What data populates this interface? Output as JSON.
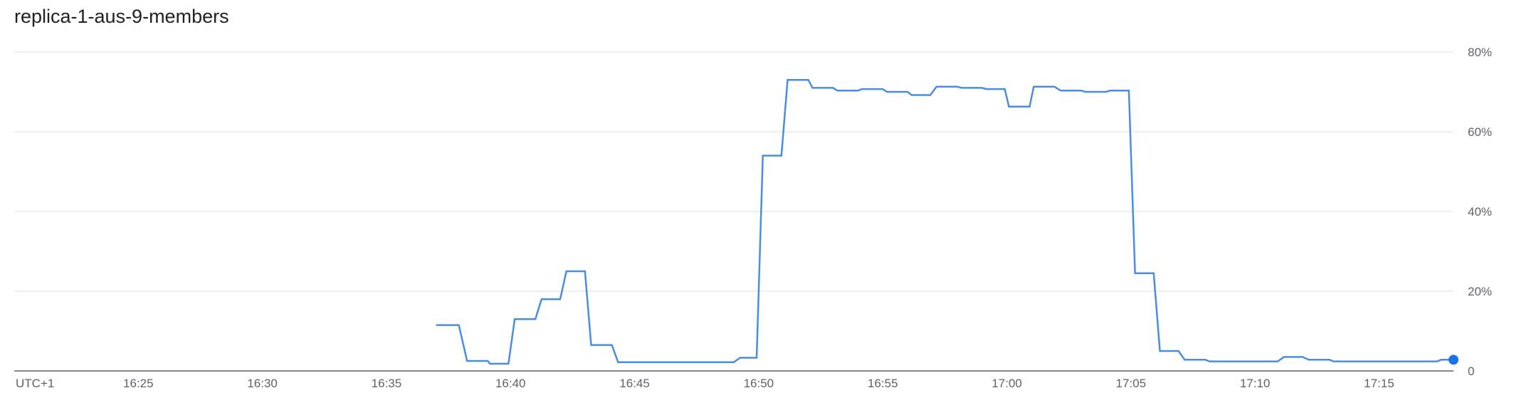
{
  "chart_data": {
    "type": "line",
    "title": "replica-1-aus-9-members",
    "timezone_label": "UTC+1",
    "x_tick_labels": [
      "16:25",
      "16:30",
      "16:35",
      "16:40",
      "16:45",
      "16:50",
      "16:55",
      "17:00",
      "17:05",
      "17:10",
      "17:15"
    ],
    "y_tick_labels": [
      "0",
      "20%",
      "40%",
      "60%",
      "80%"
    ],
    "xlim": [
      "16:20",
      "17:18"
    ],
    "ylim": [
      0,
      80
    ],
    "y_unit": "%",
    "grid": true,
    "legend": "none",
    "colors": {
      "line": "#4a8de0",
      "last_point": "#1a73e8",
      "grid": "#e8eaed",
      "axis": "#5f6368"
    },
    "series": [
      {
        "values": [
          [
            "16:37:00",
            11.5
          ],
          [
            "16:37:55",
            11.5
          ],
          [
            "16:38:15",
            2.5
          ],
          [
            "16:39:05",
            2.5
          ],
          [
            "16:39:10",
            1.8
          ],
          [
            "16:39:55",
            1.8
          ],
          [
            "16:40:10",
            13
          ],
          [
            "16:41:00",
            13
          ],
          [
            "16:41:15",
            18
          ],
          [
            "16:42:00",
            18
          ],
          [
            "16:42:15",
            25
          ],
          [
            "16:43:00",
            25
          ],
          [
            "16:43:15",
            6.5
          ],
          [
            "16:44:05",
            6.5
          ],
          [
            "16:44:20",
            2.2
          ],
          [
            "16:49:00",
            2.2
          ],
          [
            "16:49:15",
            3.3
          ],
          [
            "16:49:55",
            3.3
          ],
          [
            "16:50:10",
            54
          ],
          [
            "16:50:55",
            54
          ],
          [
            "16:51:10",
            73
          ],
          [
            "16:52:00",
            73
          ],
          [
            "16:52:10",
            71
          ],
          [
            "16:53:00",
            71
          ],
          [
            "16:53:10",
            70.3
          ],
          [
            "16:54:00",
            70.3
          ],
          [
            "16:54:10",
            70.7
          ],
          [
            "16:55:00",
            70.7
          ],
          [
            "16:55:10",
            70
          ],
          [
            "16:56:00",
            70
          ],
          [
            "16:56:10",
            69.2
          ],
          [
            "16:56:55",
            69.2
          ],
          [
            "16:57:10",
            71.3
          ],
          [
            "16:58:00",
            71.3
          ],
          [
            "16:58:10",
            71
          ],
          [
            "16:59:00",
            71
          ],
          [
            "16:59:10",
            70.7
          ],
          [
            "16:59:55",
            70.7
          ],
          [
            "17:00:05",
            66.3
          ],
          [
            "17:00:55",
            66.3
          ],
          [
            "17:01:05",
            71.3
          ],
          [
            "17:01:55",
            71.3
          ],
          [
            "17:02:10",
            70.3
          ],
          [
            "17:03:00",
            70.3
          ],
          [
            "17:03:10",
            70
          ],
          [
            "17:04:00",
            70
          ],
          [
            "17:04:10",
            70.3
          ],
          [
            "17:04:55",
            70.3
          ],
          [
            "17:05:10",
            24.5
          ],
          [
            "17:05:55",
            24.5
          ],
          [
            "17:06:10",
            5
          ],
          [
            "17:06:55",
            5
          ],
          [
            "17:07:10",
            2.8
          ],
          [
            "17:08:00",
            2.8
          ],
          [
            "17:08:10",
            2.4
          ],
          [
            "17:10:55",
            2.4
          ],
          [
            "17:11:10",
            3.5
          ],
          [
            "17:11:55",
            3.5
          ],
          [
            "17:12:10",
            2.8
          ],
          [
            "17:13:00",
            2.8
          ],
          [
            "17:13:10",
            2.4
          ],
          [
            "17:17:20",
            2.4
          ],
          [
            "17:17:30",
            2.8
          ],
          [
            "17:18:00",
            2.8
          ]
        ]
      }
    ]
  }
}
